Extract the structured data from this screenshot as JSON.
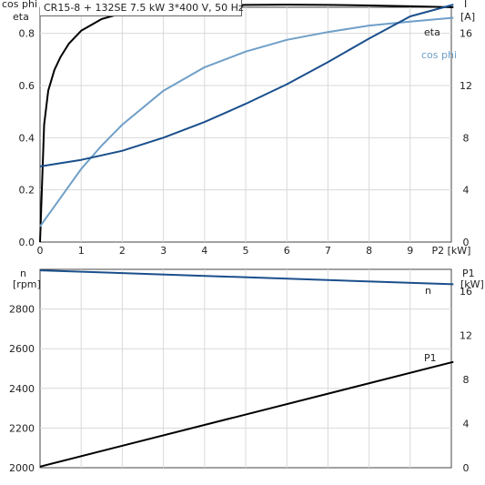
{
  "header": "CR15-8 + 132SE   7.5 kW   3*400 V, 50 Hz",
  "chart_data": [
    {
      "type": "line",
      "x_title": "P2 [kW]",
      "xlim": [
        0,
        10
      ],
      "x_ticks": [
        0,
        1,
        2,
        3,
        4,
        5,
        6,
        7,
        8,
        9
      ],
      "left_axis_title": [
        "cos phi",
        "eta"
      ],
      "ylim_left": [
        0,
        0.9
      ],
      "y_ticks_left": [
        "0.0",
        "0.2",
        "0.4",
        "0.6",
        "0.8"
      ],
      "right_axis_title": [
        "I",
        "[A]"
      ],
      "ylim_right": [
        0,
        18
      ],
      "y_ticks_right": [
        "0",
        "4",
        "8",
        "12",
        "16"
      ],
      "grid": true,
      "series": [
        {
          "name": "eta",
          "axis": "left",
          "color": "#000000",
          "x": [
            0,
            0.1,
            0.2,
            0.35,
            0.5,
            0.7,
            1.0,
            1.5,
            2.0,
            3.0,
            4.0,
            5.0,
            6.0,
            7.0,
            8.0,
            9.0,
            10.05
          ],
          "y": [
            0.0,
            0.45,
            0.58,
            0.66,
            0.71,
            0.76,
            0.81,
            0.855,
            0.877,
            0.897,
            0.905,
            0.909,
            0.91,
            0.909,
            0.907,
            0.904,
            0.9
          ]
        },
        {
          "name": "cos phi",
          "axis": "left",
          "color": "#6f9fc8",
          "x": [
            0,
            0.5,
            1.0,
            1.5,
            2.0,
            3.0,
            4.0,
            5.0,
            6.0,
            7.0,
            8.0,
            9.0,
            10.05
          ],
          "y": [
            0.06,
            0.17,
            0.28,
            0.37,
            0.45,
            0.58,
            0.67,
            0.73,
            0.775,
            0.805,
            0.83,
            0.845,
            0.86
          ]
        },
        {
          "name": "I",
          "axis": "right",
          "color": "#1a4f8c",
          "x": [
            0,
            1,
            2,
            3,
            4,
            5,
            6,
            7,
            8,
            9,
            10.05
          ],
          "y": [
            5.8,
            6.3,
            7.0,
            8.0,
            9.2,
            10.6,
            12.1,
            13.8,
            15.6,
            17.3,
            18.2
          ]
        }
      ]
    },
    {
      "type": "line",
      "x_title": "",
      "xlim": [
        0,
        10
      ],
      "left_axis_title": [
        "n",
        "[rpm]"
      ],
      "ylim_left": [
        2000,
        3000
      ],
      "y_ticks_left": [
        "2000",
        "2200",
        "2400",
        "2600",
        "2800"
      ],
      "right_axis_title": [
        "P1",
        "[kW]"
      ],
      "ylim_right": [
        0,
        18
      ],
      "y_ticks_right": [
        "0",
        "4",
        "8",
        "12",
        "16"
      ],
      "grid": true,
      "series": [
        {
          "name": "n",
          "axis": "left",
          "color": "#1a4f8c",
          "x": [
            0,
            10.05
          ],
          "y": [
            2995,
            2925
          ]
        },
        {
          "name": "P1",
          "axis": "right",
          "color": "#000000",
          "x": [
            0,
            10.05
          ],
          "y": [
            0.1,
            9.6
          ]
        }
      ]
    }
  ]
}
